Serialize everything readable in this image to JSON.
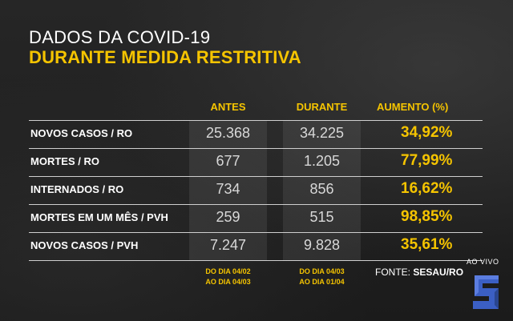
{
  "title": {
    "line1": "DADOS DA COVID-19",
    "line2": "DURANTE MEDIDA RESTRITIVA"
  },
  "headers": {
    "antes": "ANTES",
    "durante": "DURANTE",
    "aumento": "AUMENTO (%)"
  },
  "rows": [
    {
      "label": "NOVOS CASOS / RO",
      "antes": "25.368",
      "durante": "34.225",
      "aumento": "34,92%"
    },
    {
      "label": "MORTES / RO",
      "antes": "677",
      "durante": "1.205",
      "aumento": "77,99%"
    },
    {
      "label": "INTERNADOS / RO",
      "antes": "734",
      "durante": "856",
      "aumento": "16,62%"
    },
    {
      "label": "MORTES EM UM MÊS / PVH",
      "antes": "259",
      "durante": "515",
      "aumento": "98,85%"
    },
    {
      "label": "NOVOS CASOS / PVH",
      "antes": "7.247",
      "durante": "9.828",
      "aumento": "35,61%"
    }
  ],
  "periods": {
    "antes": {
      "line1": "DO DIA 04/02",
      "line2": "AO DIA 04/03"
    },
    "durante": {
      "line1": "DO DIA 04/03",
      "line2": "AO DIA 01/04"
    }
  },
  "source": {
    "prefix": "FONTE: ",
    "name": "SESAU/RO"
  },
  "broadcast": {
    "label": "AO VIVO"
  },
  "colors": {
    "accent": "#f5c400",
    "background": "#1f1f1f",
    "logo": "#3b5fc4"
  },
  "logo_icon": "s-logo-icon"
}
